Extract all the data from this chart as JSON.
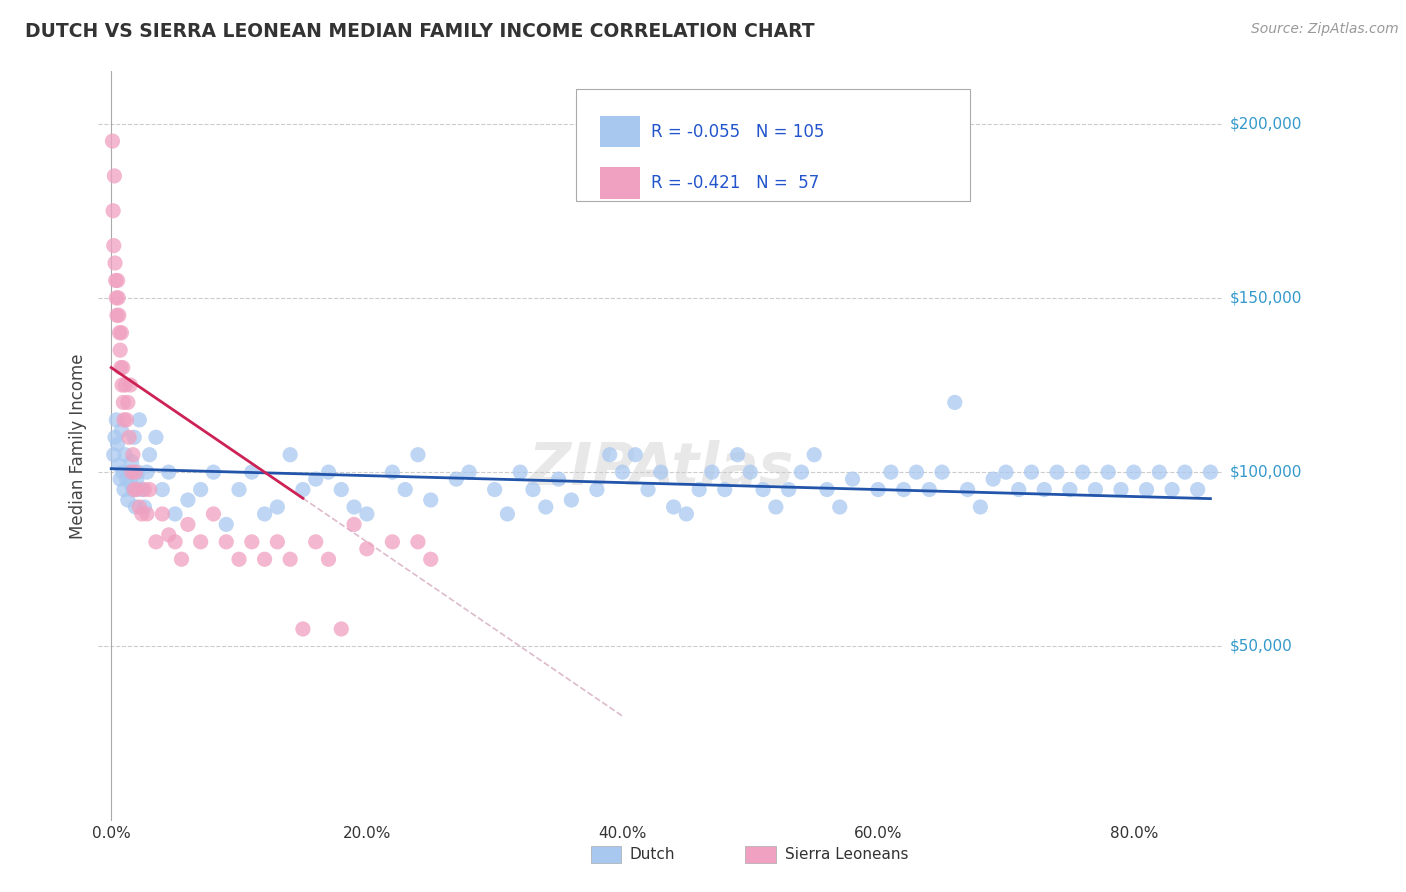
{
  "title": "DUTCH VS SIERRA LEONEAN MEDIAN FAMILY INCOME CORRELATION CHART",
  "source": "Source: ZipAtlas.com",
  "xlabel_vals": [
    0.0,
    20.0,
    40.0,
    60.0,
    80.0
  ],
  "ylabel_vals": [
    50000,
    100000,
    150000,
    200000
  ],
  "ylabel_labels": [
    "$50,000",
    "$100,000",
    "$150,000",
    "$200,000"
  ],
  "dutch_R": -0.055,
  "dutch_N": 105,
  "sl_R": -0.421,
  "sl_N": 57,
  "dutch_color": "#a8c8f0",
  "dutch_line_color": "#2255aa",
  "sl_color": "#f0a0c0",
  "sl_line_color": "#cc2255",
  "sl_line_dash_color": "#ddbbcc",
  "background_color": "#ffffff",
  "grid_color": "#cccccc",
  "watermark": "ZIPAtlas",
  "legend_dutch_label": "Dutch",
  "legend_sl_label": "Sierra Leoneans",
  "dutch_x": [
    0.2,
    0.3,
    0.4,
    0.5,
    0.6,
    0.7,
    0.8,
    0.9,
    1.0,
    1.1,
    1.2,
    1.3,
    1.4,
    1.5,
    1.6,
    1.7,
    1.8,
    1.9,
    2.0,
    2.1,
    2.2,
    2.4,
    2.6,
    2.8,
    3.0,
    3.5,
    4.0,
    4.5,
    5.0,
    6.0,
    7.0,
    8.0,
    9.0,
    10.0,
    11.0,
    12.0,
    13.0,
    14.0,
    15.0,
    16.0,
    17.0,
    18.0,
    19.0,
    20.0,
    22.0,
    23.0,
    24.0,
    25.0,
    27.0,
    28.0,
    30.0,
    31.0,
    32.0,
    33.0,
    34.0,
    35.0,
    36.0,
    38.0,
    39.0,
    40.0,
    41.0,
    42.0,
    43.0,
    44.0,
    45.0,
    46.0,
    47.0,
    48.0,
    49.0,
    50.0,
    51.0,
    52.0,
    53.0,
    54.0,
    55.0,
    56.0,
    57.0,
    58.0,
    60.0,
    61.0,
    62.0,
    63.0,
    64.0,
    65.0,
    66.0,
    67.0,
    68.0,
    69.0,
    70.0,
    71.0,
    72.0,
    73.0,
    74.0,
    75.0,
    76.0,
    77.0,
    78.0,
    79.0,
    80.0,
    81.0,
    82.0,
    83.0,
    84.0,
    85.0,
    86.0
  ],
  "dutch_y": [
    105000,
    110000,
    115000,
    108000,
    102000,
    98000,
    112000,
    100000,
    95000,
    105000,
    98000,
    92000,
    100000,
    97000,
    103000,
    95000,
    110000,
    90000,
    98000,
    100000,
    115000,
    95000,
    90000,
    100000,
    105000,
    110000,
    95000,
    100000,
    88000,
    92000,
    95000,
    100000,
    85000,
    95000,
    100000,
    88000,
    90000,
    105000,
    95000,
    98000,
    100000,
    95000,
    90000,
    88000,
    100000,
    95000,
    105000,
    92000,
    98000,
    100000,
    95000,
    88000,
    100000,
    95000,
    90000,
    98000,
    92000,
    95000,
    105000,
    100000,
    105000,
    95000,
    100000,
    90000,
    88000,
    95000,
    100000,
    95000,
    105000,
    100000,
    95000,
    90000,
    95000,
    100000,
    105000,
    95000,
    90000,
    98000,
    95000,
    100000,
    95000,
    100000,
    95000,
    100000,
    120000,
    95000,
    90000,
    98000,
    100000,
    95000,
    100000,
    95000,
    100000,
    95000,
    100000,
    95000,
    100000,
    95000,
    100000,
    95000,
    100000,
    95000,
    100000,
    95000,
    100000
  ],
  "sl_x": [
    0.1,
    0.15,
    0.2,
    0.25,
    0.3,
    0.35,
    0.4,
    0.45,
    0.5,
    0.55,
    0.6,
    0.65,
    0.7,
    0.75,
    0.8,
    0.85,
    0.9,
    0.95,
    1.0,
    1.1,
    1.2,
    1.3,
    1.4,
    1.5,
    1.6,
    1.7,
    1.8,
    1.9,
    2.0,
    2.2,
    2.4,
    2.6,
    2.8,
    3.0,
    3.5,
    4.0,
    4.5,
    5.0,
    5.5,
    6.0,
    7.0,
    8.0,
    9.0,
    10.0,
    11.0,
    12.0,
    13.0,
    14.0,
    15.0,
    16.0,
    17.0,
    18.0,
    19.0,
    20.0,
    22.0,
    24.0,
    25.0
  ],
  "sl_y": [
    195000,
    175000,
    165000,
    185000,
    160000,
    155000,
    150000,
    145000,
    155000,
    150000,
    145000,
    140000,
    135000,
    130000,
    140000,
    125000,
    130000,
    120000,
    115000,
    125000,
    115000,
    120000,
    110000,
    125000,
    100000,
    105000,
    95000,
    100000,
    95000,
    90000,
    88000,
    95000,
    88000,
    95000,
    80000,
    88000,
    82000,
    80000,
    75000,
    85000,
    80000,
    88000,
    80000,
    75000,
    80000,
    75000,
    80000,
    75000,
    55000,
    80000,
    75000,
    55000,
    85000,
    78000,
    80000,
    80000,
    75000
  ]
}
